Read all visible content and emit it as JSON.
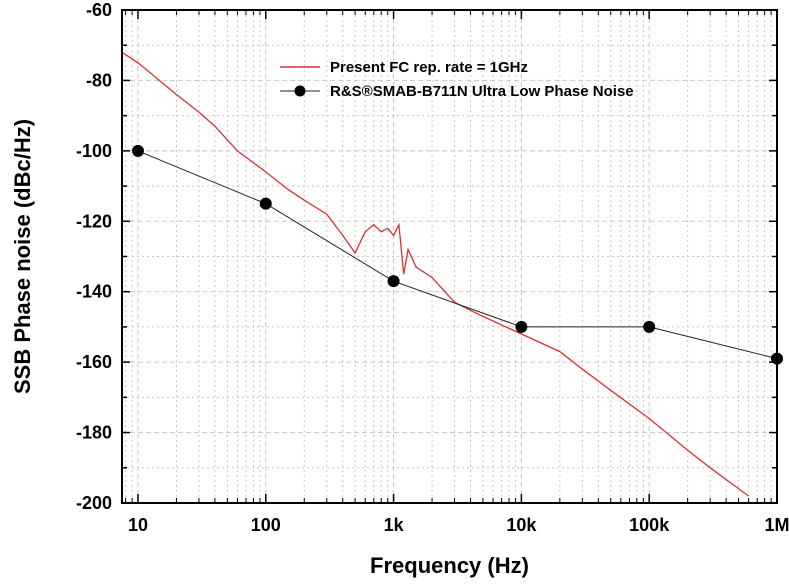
{
  "chart_data": {
    "type": "line",
    "title": "",
    "xlabel": "Frequency  (Hz)",
    "ylabel": "SSB Phase noise (dBc/Hz)",
    "xscale": "log",
    "xlim": [
      7.5,
      1000000
    ],
    "ylim": [
      -200,
      -60
    ],
    "x_ticks": [
      10,
      100,
      1000,
      10000,
      100000,
      1000000
    ],
    "x_tick_labels": [
      "10",
      "100",
      "1k",
      "10k",
      "100k",
      "1M"
    ],
    "y_ticks": [
      -60,
      -80,
      -100,
      -120,
      -140,
      -160,
      -180,
      -200
    ],
    "y_tick_labels": [
      "-60",
      "-80",
      "-100",
      "-120",
      "-140",
      "-160",
      "-180",
      "-200"
    ],
    "grid": true,
    "legend_position": "top-center",
    "series": [
      {
        "name": "Present FC rep. rate = 1GHz",
        "color": "#d93232",
        "x": [
          7.5,
          10,
          20,
          30,
          40,
          60,
          100,
          150,
          200,
          300,
          400,
          500,
          600,
          700,
          800,
          900,
          1000,
          1100,
          1200,
          1300,
          1500,
          2000,
          3000,
          5000,
          10000,
          20000,
          30000,
          50000,
          100000,
          200000,
          300000,
          600000
        ],
        "y": [
          -72,
          -75,
          -84,
          -89,
          -93,
          -100,
          -106,
          -111,
          -114,
          -118,
          -124,
          -129,
          -123,
          -121,
          -123,
          -122,
          -124,
          -121,
          -135,
          -128,
          -133,
          -136,
          -143,
          -147,
          -152,
          -157,
          -162,
          -168,
          -176,
          -185,
          -190,
          -198
        ]
      },
      {
        "name": "R&S®SMAB-B711N Ultra Low Phase Noise",
        "color": "#222222",
        "marker": "circle",
        "x": [
          10,
          100,
          1000,
          10000,
          100000,
          1000000
        ],
        "y": [
          -100,
          -115,
          -137,
          -150,
          -150,
          -159
        ]
      }
    ]
  }
}
